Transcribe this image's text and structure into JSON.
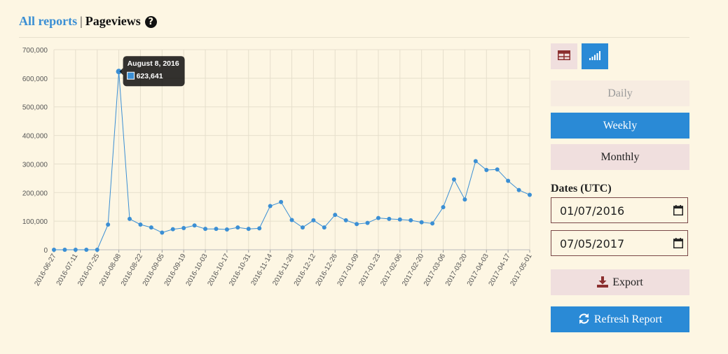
{
  "header": {
    "all_reports": "All reports",
    "separator": "|",
    "title": "Pageviews",
    "help_glyph": "?"
  },
  "controls": {
    "view_table_icon": "table-icon",
    "view_chart_icon": "chart-icon",
    "daily": "Daily",
    "weekly": "Weekly",
    "monthly": "Monthly",
    "dates_label": "Dates (UTC)",
    "start_date": "01/07/2016",
    "end_date": "07/05/2017",
    "export": "Export",
    "refresh": "Refresh Report"
  },
  "colors": {
    "accent": "#2a8ad6",
    "line": "#3b8fd4",
    "pink": "#f0dfde",
    "bg": "#fdf6e3"
  },
  "chart_data": {
    "type": "line",
    "x": [
      "2016-06-27",
      "2016-07-04",
      "2016-07-11",
      "2016-07-18",
      "2016-07-25",
      "2016-08-01",
      "2016-08-08",
      "2016-08-15",
      "2016-08-22",
      "2016-08-29",
      "2016-09-05",
      "2016-09-12",
      "2016-09-19",
      "2016-09-26",
      "2016-10-03",
      "2016-10-10",
      "2016-10-17",
      "2016-10-24",
      "2016-10-31",
      "2016-11-07",
      "2016-11-14",
      "2016-11-21",
      "2016-11-28",
      "2016-12-05",
      "2016-12-12",
      "2016-12-19",
      "2016-12-26",
      "2017-01-02",
      "2017-01-09",
      "2017-01-16",
      "2017-01-23",
      "2017-01-30",
      "2017-02-06",
      "2017-02-13",
      "2017-02-20",
      "2017-02-27",
      "2017-03-06",
      "2017-03-13",
      "2017-03-20",
      "2017-03-27",
      "2017-04-03",
      "2017-04-10",
      "2017-04-17",
      "2017-04-24",
      "2017-05-01"
    ],
    "tick_labels": [
      "2016-06-27",
      "2016-07-11",
      "2016-07-25",
      "2016-08-08",
      "2016-08-22",
      "2016-09-05",
      "2016-09-19",
      "2016-10-03",
      "2016-10-17",
      "2016-10-31",
      "2016-11-14",
      "2016-11-28",
      "2016-12-12",
      "2016-12-26",
      "2017-01-09",
      "2017-01-23",
      "2017-02-06",
      "2017-02-20",
      "2017-03-06",
      "2017-03-20",
      "2017-04-03",
      "2017-04-17",
      "2017-05-01"
    ],
    "values": [
      0,
      0,
      0,
      0,
      0,
      88000,
      623641,
      108000,
      88000,
      78000,
      60000,
      72000,
      76000,
      85000,
      73000,
      73000,
      71000,
      78000,
      73000,
      75000,
      153000,
      167000,
      104000,
      78000,
      103000,
      78000,
      122000,
      103000,
      90000,
      94000,
      111000,
      108000,
      106000,
      103000,
      96000,
      92000,
      149000,
      246000,
      176000,
      310000,
      279000,
      281000,
      241000,
      209000,
      192000
    ],
    "y_ticks": [
      "0",
      "100,000",
      "200,000",
      "300,000",
      "400,000",
      "500,000",
      "600,000",
      "700,000"
    ],
    "ylim": [
      0,
      700000
    ],
    "grid": true,
    "tooltip": {
      "date": "August 8, 2016",
      "value": "623,641"
    }
  }
}
